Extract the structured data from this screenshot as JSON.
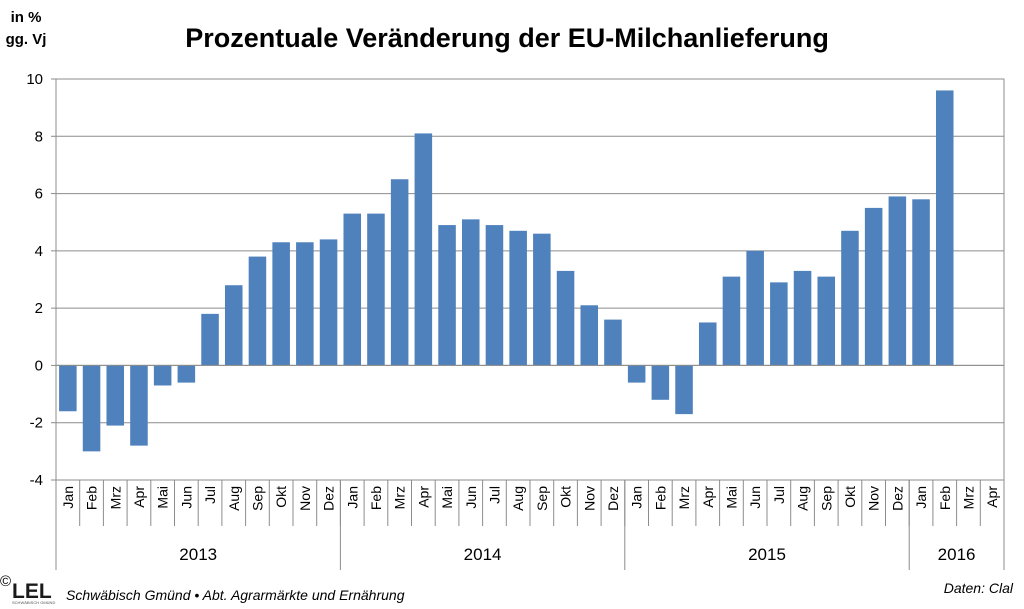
{
  "chart_data": {
    "type": "bar",
    "title": "Prozentuale Veränderung der EU-Milchanlieferung",
    "ylabel_line1": "in %",
    "ylabel_line2": "gg. Vj",
    "xlabel": "",
    "ylim": [
      -4,
      10
    ],
    "yticks": [
      "-4",
      "-2",
      "0",
      "2",
      "4",
      "6",
      "8",
      "10"
    ],
    "grid": true,
    "color": "#4f81bd",
    "categories": [
      "Jan",
      "Feb",
      "Mrz",
      "Apr",
      "Mai",
      "Jun",
      "Jul",
      "Aug",
      "Sep",
      "Okt",
      "Nov",
      "Dez",
      "Jan",
      "Feb",
      "Mrz",
      "Apr",
      "Mai",
      "Jun",
      "Jul",
      "Aug",
      "Sep",
      "Okt",
      "Nov",
      "Dez",
      "Jan",
      "Feb",
      "Mrz",
      "Apr",
      "Mai",
      "Jun",
      "Jul",
      "Aug",
      "Sep",
      "Okt",
      "Nov",
      "Dez",
      "Jan",
      "Feb",
      "Mrz",
      "Apr"
    ],
    "values": [
      -1.6,
      -3.0,
      -2.1,
      -2.8,
      -0.7,
      -0.6,
      1.8,
      2.8,
      3.8,
      4.3,
      4.3,
      4.4,
      5.3,
      5.3,
      6.5,
      8.1,
      4.9,
      5.1,
      4.9,
      4.7,
      4.6,
      3.3,
      2.1,
      1.6,
      -0.6,
      -1.2,
      -1.7,
      1.5,
      3.1,
      4.0,
      2.9,
      3.3,
      3.1,
      4.7,
      5.5,
      5.9,
      5.8,
      9.6,
      null,
      null
    ],
    "years": [
      {
        "label": "2013",
        "months": 12
      },
      {
        "label": "2014",
        "months": 12
      },
      {
        "label": "2015",
        "months": 12
      },
      {
        "label": "2016",
        "months": 4
      }
    ]
  },
  "footer": {
    "logo_text": "LEL",
    "logo_subtext": "SCHWÄBISCH GMÜND",
    "copyright": "©",
    "left_text": "Schwäbisch Gmünd • Abt. Agrarmärkte und Ernährung",
    "right_text": "Daten: Clal"
  }
}
